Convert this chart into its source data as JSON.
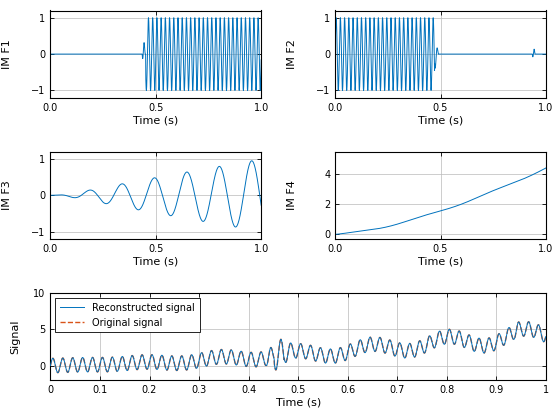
{
  "fs": 2000,
  "duration": 1.0,
  "line_color": "#0072BD",
  "line_color2": "#D95319",
  "bg_color": "#FFFFFF",
  "grid_color": "#BABABA",
  "ylabel1": "IM F1",
  "ylabel2": "IM F2",
  "ylabel3": "IM F3",
  "ylabel4": "IM F4",
  "ylabel5": "Signal",
  "xlabel": "Time (s)",
  "legend1": "Reconstructed signal",
  "legend2": "Original signal",
  "ylim1": [
    -1.2,
    1.2
  ],
  "ylim2": [
    -1.2,
    1.2
  ],
  "ylim3": [
    -1.2,
    1.2
  ],
  "ylim4": [
    -0.3,
    5.5
  ],
  "ylim5": [
    -2,
    10
  ],
  "yticks1": [
    -1,
    0,
    1
  ],
  "yticks2": [
    -1,
    0,
    1
  ],
  "yticks3": [
    -1,
    0,
    1
  ],
  "yticks4": [
    0,
    2,
    4
  ],
  "yticks5": [
    0,
    5,
    10
  ],
  "xticks_top": [
    0,
    0.5,
    1
  ],
  "xticks_bottom": [
    0,
    0.1,
    0.2,
    0.3,
    0.4,
    0.5,
    0.6,
    0.7,
    0.8,
    0.9,
    1.0
  ]
}
